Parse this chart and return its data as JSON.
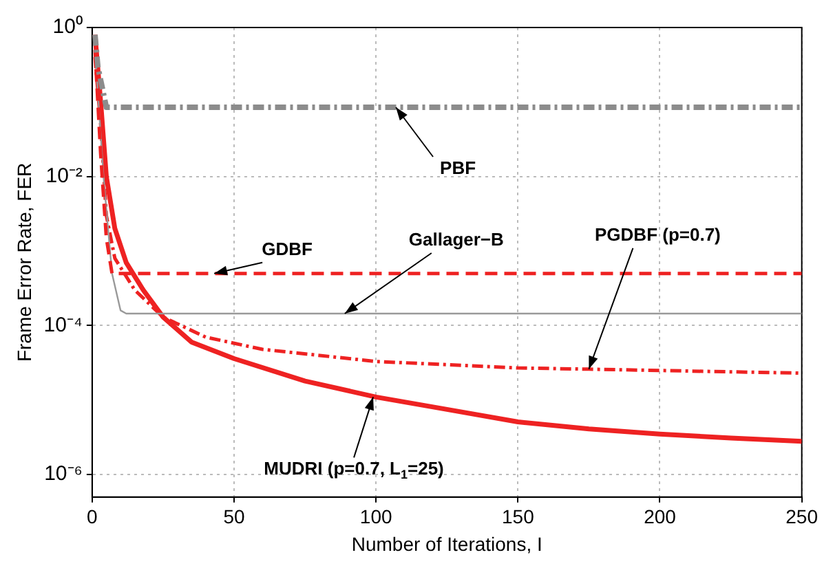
{
  "chart_data": {
    "type": "line",
    "xlabel": "Number of Iterations, I",
    "ylabel": "Frame Error Rate, FER",
    "log": "y",
    "grid": true,
    "marker": "none",
    "xlim": [
      0,
      250
    ],
    "xticks": [
      0,
      50,
      100,
      150,
      200,
      250
    ],
    "ylim": [
      5e-07,
      1
    ],
    "yticks": [
      {
        "value": 1,
        "label": "10⁰"
      },
      {
        "value": 0.01,
        "label": "10⁻²"
      },
      {
        "value": 0.0001,
        "label": "10⁻⁴"
      },
      {
        "value": 1e-06,
        "label": "10⁻⁶"
      }
    ],
    "series": [
      {
        "color": "#8c8c8c",
        "line_style": "dashdot",
        "x": [
          1,
          2,
          5,
          250
        ],
        "values": [
          0.8,
          0.3,
          0.085,
          0.085
        ]
      },
      {
        "color": "#ee2222",
        "line_style": "dashed",
        "x": [
          1,
          3,
          5,
          7,
          250
        ],
        "values": [
          0.5,
          0.02,
          0.0015,
          0.0005,
          0.0005
        ]
      },
      {
        "color": "#999999",
        "line_style": "solid",
        "x": [
          1,
          4,
          7,
          10,
          12,
          250
        ],
        "values": [
          0.5,
          0.01,
          0.0005,
          0.00016,
          0.000145,
          0.000145
        ]
      },
      {
        "color": "#ee2222",
        "line_style": "dashdot",
        "x": [
          1,
          3,
          5,
          8,
          15,
          25,
          40,
          60,
          100,
          150,
          175,
          250
        ],
        "values": [
          0.4,
          0.05,
          0.003,
          0.0008,
          0.0003,
          0.00013,
          7e-05,
          4.8e-05,
          3.3e-05,
          2.7e-05,
          2.6e-05,
          2.3e-05
        ]
      },
      {
        "color": "#ee2222",
        "line_style": "solid",
        "x": [
          1,
          3,
          5,
          8,
          12,
          18,
          25,
          35,
          50,
          75,
          100,
          125,
          150,
          175,
          200,
          225,
          250
        ],
        "values": [
          0.8,
          0.1,
          0.01,
          0.002,
          0.0007,
          0.0003,
          0.00013,
          6e-05,
          3.6e-05,
          1.8e-05,
          1.1e-05,
          7.5e-06,
          5.1e-06,
          4.1e-06,
          3.5e-06,
          3.1e-06,
          2.8e-06
        ]
      }
    ],
    "annotations": [
      {
        "text": "PBF",
        "x": 107,
        "y": 0.085
      },
      {
        "text": "GDBF",
        "x": 43,
        "y": 0.0005
      },
      {
        "text": "Gallager−B",
        "x": 89,
        "y": 0.000145
      },
      {
        "text": "PGDBF (p=0.7)",
        "x": 175,
        "y": 2.6e-05
      },
      {
        "text": "MUDRI (p=0.7, L$_{1}$=25)",
        "x": 99,
        "y": 1.1e-05
      }
    ]
  }
}
